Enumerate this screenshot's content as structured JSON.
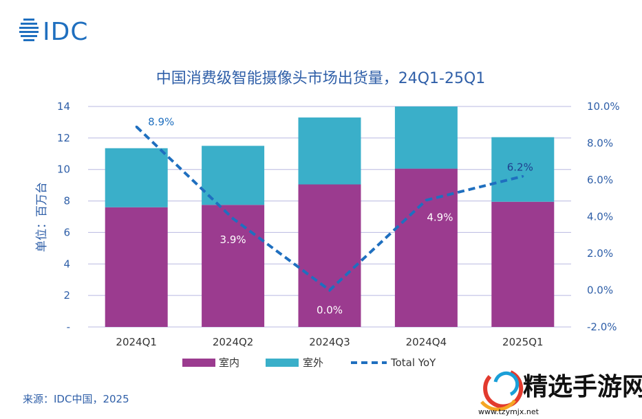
{
  "brand": {
    "logo_text": "IDC",
    "color": "#1f6fbf"
  },
  "watermark": {
    "text": "精选手游网",
    "url_text": "www.tzymjx.net"
  },
  "source_note": "来源：IDC中国，2025",
  "colors": {
    "indoor": "#9b3b8f",
    "outdoor": "#3aafc9",
    "yoy_line": "#1f6fbf",
    "title": "#2f5fa8",
    "axis_text": "#2f5fa8",
    "grid": "#b8b8e0"
  },
  "chart_data": {
    "type": "bar",
    "stacked": true,
    "title": "中国消费级智能摄像头市场出货量，24Q1-25Q1",
    "ylabel": "单位：百万台",
    "categories": [
      "2024Q1",
      "2024Q2",
      "2024Q3",
      "2024Q4",
      "2025Q1"
    ],
    "y_ticks": [
      "-",
      "2",
      "4",
      "6",
      "8",
      "10",
      "12",
      "14"
    ],
    "ylim": [
      0,
      14
    ],
    "y2_ticks": [
      "-2.0%",
      "0.0%",
      "2.0%",
      "4.0%",
      "6.0%",
      "8.0%",
      "10.0%"
    ],
    "y2lim": [
      -2,
      10
    ],
    "series": [
      {
        "name": "室内",
        "values": [
          7.6,
          7.75,
          9.05,
          10.05,
          7.95
        ]
      },
      {
        "name": "室外",
        "values": [
          3.75,
          3.75,
          4.25,
          3.95,
          4.1
        ]
      }
    ],
    "line_series": {
      "name": "Total YoY",
      "values": [
        8.9,
        3.9,
        0.0,
        4.9,
        6.2
      ],
      "labels": [
        "8.9%",
        "3.9%",
        "0.0%",
        "4.9%",
        "6.2%"
      ]
    },
    "legend": [
      "室内",
      "室外",
      "Total YoY"
    ]
  }
}
